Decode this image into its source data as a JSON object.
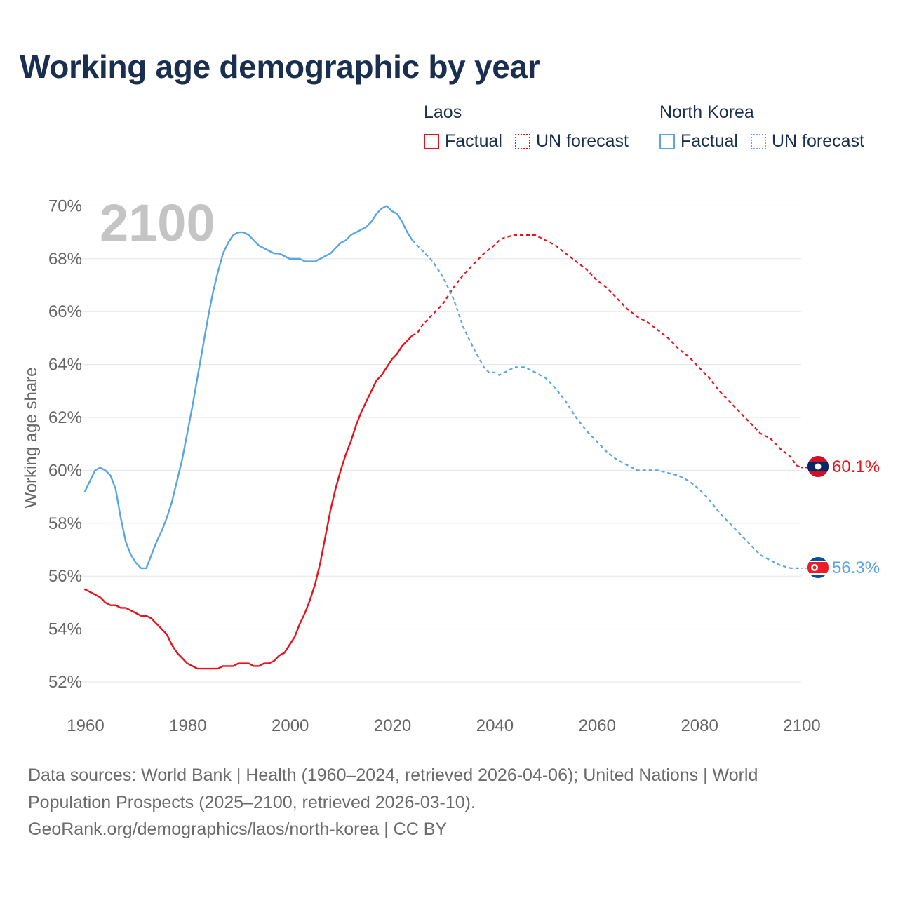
{
  "title": "Working age demographic by year",
  "year_watermark": "2100",
  "legend": {
    "groups": [
      {
        "name": "Laos",
        "factual_label": "Factual",
        "forecast_label": "UN forecast",
        "color": "#e8121c"
      },
      {
        "name": "North Korea",
        "factual_label": "Factual",
        "forecast_label": "UN forecast",
        "color": "#5aa5e3"
      }
    ]
  },
  "end_labels": {
    "laos": "60.1%",
    "north_korea": "56.3%"
  },
  "footer": {
    "line1": "Data sources: World Bank | Health (1960–2024, retrieved 2026-04-06); United Nations | World Population Prospects (2025–2100, retrieved 2026-03-10).",
    "line2": "GeoRank.org/demographics/laos/north-korea | CC BY"
  },
  "colors": {
    "laos": "#e8121c",
    "north_korea": "#5aa5e3",
    "title": "#1a2e4f",
    "axis_text": "#666666",
    "grid": "#e5e5e5"
  },
  "chart_data": {
    "type": "line",
    "title": "Working age demographic by year",
    "xlabel": "",
    "ylabel": "Working age share",
    "xlim": [
      1960,
      2100
    ],
    "ylim": [
      51.5,
      70.5
    ],
    "x_ticks": [
      1960,
      1980,
      2000,
      2020,
      2040,
      2060,
      2080,
      2100
    ],
    "y_ticks": [
      52,
      54,
      56,
      58,
      60,
      62,
      64,
      66,
      68,
      70
    ],
    "y_tick_labels": [
      "52%",
      "54%",
      "56%",
      "58%",
      "60%",
      "62%",
      "64%",
      "66%",
      "68%",
      "70%"
    ],
    "grid": true,
    "series": [
      {
        "name": "Laos",
        "factual": [
          [
            1960,
            55.5
          ],
          [
            1962,
            55.3
          ],
          [
            1963,
            55.2
          ],
          [
            1964,
            55.0
          ],
          [
            1965,
            54.9
          ],
          [
            1966,
            54.9
          ],
          [
            1967,
            54.8
          ],
          [
            1968,
            54.8
          ],
          [
            1970,
            54.6
          ],
          [
            1971,
            54.5
          ],
          [
            1972,
            54.5
          ],
          [
            1973,
            54.4
          ],
          [
            1974,
            54.2
          ],
          [
            1976,
            53.8
          ],
          [
            1977,
            53.4
          ],
          [
            1978,
            53.1
          ],
          [
            1980,
            52.7
          ],
          [
            1982,
            52.5
          ],
          [
            1984,
            52.5
          ],
          [
            1986,
            52.5
          ],
          [
            1987,
            52.6
          ],
          [
            1989,
            52.6
          ],
          [
            1990,
            52.7
          ],
          [
            1992,
            52.7
          ],
          [
            1993,
            52.6
          ],
          [
            1994,
            52.6
          ],
          [
            1995,
            52.7
          ],
          [
            1996,
            52.7
          ],
          [
            1997,
            52.8
          ],
          [
            1998,
            53.0
          ],
          [
            1999,
            53.1
          ],
          [
            2000,
            53.4
          ],
          [
            2001,
            53.7
          ],
          [
            2002,
            54.2
          ],
          [
            2003,
            54.6
          ],
          [
            2004,
            55.1
          ],
          [
            2005,
            55.7
          ],
          [
            2006,
            56.5
          ],
          [
            2007,
            57.5
          ],
          [
            2008,
            58.5
          ],
          [
            2009,
            59.3
          ],
          [
            2010,
            60.0
          ],
          [
            2011,
            60.6
          ],
          [
            2012,
            61.1
          ],
          [
            2013,
            61.7
          ],
          [
            2014,
            62.2
          ],
          [
            2015,
            62.6
          ],
          [
            2016,
            63.0
          ],
          [
            2017,
            63.4
          ],
          [
            2018,
            63.6
          ],
          [
            2019,
            63.9
          ],
          [
            2020,
            64.2
          ],
          [
            2021,
            64.4
          ],
          [
            2022,
            64.7
          ],
          [
            2023,
            64.9
          ],
          [
            2024,
            65.1
          ]
        ],
        "forecast": [
          [
            2024,
            65.1
          ],
          [
            2025,
            65.2
          ],
          [
            2026,
            65.5
          ],
          [
            2028,
            65.9
          ],
          [
            2030,
            66.3
          ],
          [
            2032,
            66.9
          ],
          [
            2034,
            67.4
          ],
          [
            2036,
            67.8
          ],
          [
            2038,
            68.2
          ],
          [
            2040,
            68.5
          ],
          [
            2041,
            68.7
          ],
          [
            2042,
            68.8
          ],
          [
            2044,
            68.9
          ],
          [
            2046,
            68.9
          ],
          [
            2048,
            68.9
          ],
          [
            2050,
            68.7
          ],
          [
            2052,
            68.5
          ],
          [
            2054,
            68.2
          ],
          [
            2056,
            67.9
          ],
          [
            2058,
            67.6
          ],
          [
            2060,
            67.2
          ],
          [
            2062,
            66.9
          ],
          [
            2064,
            66.5
          ],
          [
            2066,
            66.1
          ],
          [
            2068,
            65.8
          ],
          [
            2070,
            65.6
          ],
          [
            2072,
            65.3
          ],
          [
            2074,
            65.0
          ],
          [
            2076,
            64.6
          ],
          [
            2078,
            64.3
          ],
          [
            2080,
            63.9
          ],
          [
            2082,
            63.5
          ],
          [
            2084,
            63.0
          ],
          [
            2086,
            62.6
          ],
          [
            2088,
            62.2
          ],
          [
            2090,
            61.8
          ],
          [
            2092,
            61.4
          ],
          [
            2094,
            61.2
          ],
          [
            2096,
            60.8
          ],
          [
            2098,
            60.5
          ],
          [
            2099,
            60.2
          ],
          [
            2100,
            60.1
          ]
        ]
      },
      {
        "name": "North Korea",
        "factual": [
          [
            1960,
            59.2
          ],
          [
            1962,
            60.0
          ],
          [
            1963,
            60.1
          ],
          [
            1964,
            60.0
          ],
          [
            1965,
            59.8
          ],
          [
            1966,
            59.3
          ],
          [
            1967,
            58.2
          ],
          [
            1968,
            57.3
          ],
          [
            1969,
            56.8
          ],
          [
            1970,
            56.5
          ],
          [
            1971,
            56.3
          ],
          [
            1972,
            56.3
          ],
          [
            1973,
            56.8
          ],
          [
            1974,
            57.3
          ],
          [
            1975,
            57.7
          ],
          [
            1976,
            58.2
          ],
          [
            1977,
            58.8
          ],
          [
            1978,
            59.6
          ],
          [
            1979,
            60.4
          ],
          [
            1980,
            61.4
          ],
          [
            1981,
            62.4
          ],
          [
            1982,
            63.5
          ],
          [
            1983,
            64.6
          ],
          [
            1984,
            65.7
          ],
          [
            1985,
            66.7
          ],
          [
            1986,
            67.5
          ],
          [
            1987,
            68.2
          ],
          [
            1988,
            68.6
          ],
          [
            1989,
            68.9
          ],
          [
            1990,
            69.0
          ],
          [
            1991,
            69.0
          ],
          [
            1992,
            68.9
          ],
          [
            1993,
            68.7
          ],
          [
            1994,
            68.5
          ],
          [
            1996,
            68.3
          ],
          [
            1997,
            68.2
          ],
          [
            1998,
            68.2
          ],
          [
            1999,
            68.1
          ],
          [
            2000,
            68.0
          ],
          [
            2002,
            68.0
          ],
          [
            2003,
            67.9
          ],
          [
            2005,
            67.9
          ],
          [
            2007,
            68.1
          ],
          [
            2008,
            68.2
          ],
          [
            2009,
            68.4
          ],
          [
            2010,
            68.6
          ],
          [
            2011,
            68.7
          ],
          [
            2012,
            68.9
          ],
          [
            2014,
            69.1
          ],
          [
            2015,
            69.2
          ],
          [
            2016,
            69.4
          ],
          [
            2017,
            69.7
          ],
          [
            2018,
            69.9
          ],
          [
            2019,
            70.0
          ],
          [
            2020,
            69.8
          ],
          [
            2021,
            69.7
          ],
          [
            2022,
            69.4
          ],
          [
            2023,
            69.0
          ],
          [
            2024,
            68.7
          ]
        ],
        "forecast": [
          [
            2024,
            68.7
          ],
          [
            2026,
            68.3
          ],
          [
            2028,
            67.9
          ],
          [
            2030,
            67.3
          ],
          [
            2032,
            66.5
          ],
          [
            2034,
            65.4
          ],
          [
            2036,
            64.6
          ],
          [
            2038,
            63.9
          ],
          [
            2039,
            63.7
          ],
          [
            2040,
            63.7
          ],
          [
            2041,
            63.6
          ],
          [
            2043,
            63.8
          ],
          [
            2044,
            63.9
          ],
          [
            2046,
            63.9
          ],
          [
            2048,
            63.7
          ],
          [
            2050,
            63.5
          ],
          [
            2052,
            63.1
          ],
          [
            2054,
            62.6
          ],
          [
            2056,
            62.0
          ],
          [
            2058,
            61.5
          ],
          [
            2060,
            61.1
          ],
          [
            2062,
            60.7
          ],
          [
            2064,
            60.4
          ],
          [
            2066,
            60.2
          ],
          [
            2068,
            60.0
          ],
          [
            2070,
            60.0
          ],
          [
            2072,
            60.0
          ],
          [
            2074,
            59.9
          ],
          [
            2076,
            59.8
          ],
          [
            2078,
            59.6
          ],
          [
            2080,
            59.3
          ],
          [
            2082,
            58.9
          ],
          [
            2084,
            58.4
          ],
          [
            2086,
            58.0
          ],
          [
            2088,
            57.6
          ],
          [
            2090,
            57.2
          ],
          [
            2092,
            56.8
          ],
          [
            2094,
            56.6
          ],
          [
            2096,
            56.4
          ],
          [
            2098,
            56.3
          ],
          [
            2100,
            56.3
          ]
        ]
      }
    ]
  }
}
